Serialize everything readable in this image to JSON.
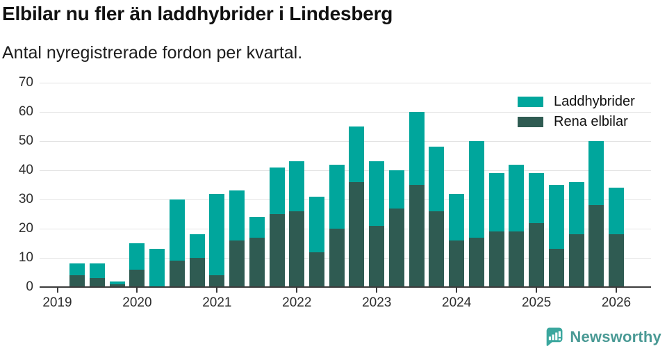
{
  "title": "Elbilar nu fler än laddhybrider i Lindesberg",
  "subtitle": "Antal nyregistrerade fordon per kvartal.",
  "colors": {
    "laddhybrider": "#00a69c",
    "rena_elbilar": "#2f5b52",
    "axis": "#3b3b3b",
    "gridline": "#e3e3e3",
    "brand_icon": "#3ba79e",
    "brand_text": "#4a9a95"
  },
  "legend": {
    "items": [
      {
        "label": "Laddhybrider",
        "color": "#00a69c"
      },
      {
        "label": "Rena elbilar",
        "color": "#2f5b52"
      }
    ]
  },
  "footer": {
    "brand": "Newsworthy"
  },
  "chart_data": {
    "type": "bar",
    "stacked": true,
    "title": "Elbilar nu fler än laddhybrider i Lindesberg",
    "subtitle": "Antal nyregistrerade fordon per kvartal.",
    "xlabel": "",
    "ylabel": "",
    "ylim": [
      0,
      70
    ],
    "yticks": [
      0,
      10,
      20,
      30,
      40,
      50,
      60,
      70
    ],
    "grid": true,
    "legend_position": "top-right",
    "x": [
      "2019 Q1",
      "2019 Q2",
      "2019 Q3",
      "2019 Q4",
      "2020 Q1",
      "2020 Q2",
      "2020 Q3",
      "2020 Q4",
      "2021 Q1",
      "2021 Q2",
      "2021 Q3",
      "2021 Q4",
      "2022 Q1",
      "2022 Q2",
      "2022 Q3",
      "2022 Q4",
      "2023 Q1",
      "2023 Q2",
      "2023 Q3",
      "2023 Q4",
      "2024 Q1",
      "2024 Q2",
      "2024 Q3",
      "2024 Q4",
      "2025 Q1",
      "2025 Q2",
      "2025 Q3",
      "2025 Q4",
      "2026 Q1"
    ],
    "year_labels": [
      "2019",
      "2020",
      "2021",
      "2022",
      "2023",
      "2024",
      "2025",
      "2026"
    ],
    "series": [
      {
        "name": "Rena elbilar",
        "color": "#2f5b52",
        "values": [
          0,
          4,
          3,
          1,
          6,
          0,
          9,
          10,
          4,
          16,
          17,
          25,
          26,
          12,
          20,
          36,
          21,
          27,
          35,
          26,
          16,
          17,
          19,
          19,
          22,
          13,
          18,
          28,
          18
        ]
      },
      {
        "name": "Laddhybrider",
        "color": "#00a69c",
        "values": [
          0,
          4,
          5,
          1,
          9,
          13,
          21,
          8,
          28,
          17,
          7,
          16,
          17,
          19,
          22,
          19,
          22,
          13,
          25,
          22,
          16,
          33,
          20,
          23,
          17,
          22,
          18,
          22,
          16
        ]
      }
    ],
    "totals": [
      0,
      8,
      8,
      2,
      15,
      13,
      30,
      18,
      32,
      33,
      24,
      41,
      43,
      31,
      42,
      55,
      43,
      40,
      60,
      48,
      32,
      50,
      39,
      42,
      39,
      35,
      36,
      50,
      34
    ]
  }
}
